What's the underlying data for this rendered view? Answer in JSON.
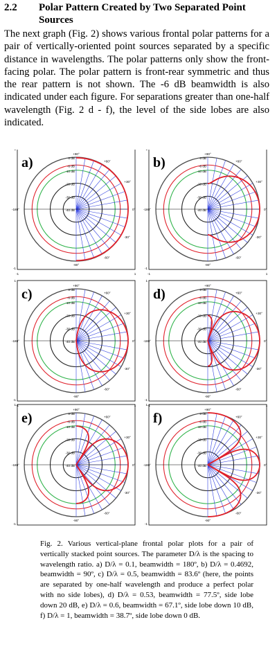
{
  "section": {
    "number": "2.2",
    "title": "Polar Pattern Created by Two Separated Point Sources"
  },
  "paragraph": "The next graph (Fig. 2) shows various frontal polar patterns for a pair of vertically-oriented point sources separated by a specific distance in wavelengths. The polar patterns only show the front-facing polar. The polar pattern is front-rear symmetric and thus the rear pattern is not shown. The -6 dB beamwidth is also indicated under each figure. For separations greater than one-half wavelength (Fig. 2 d - f), the level of the side lobes are also indicated.",
  "caption": "Fig. 2. Various vertical-plane frontal polar plots for a pair of vertically stacked point sources. The parameter D/λ is the spacing to wavelength ratio. a) D/λ = 0.1, beamwidth = 180º, b) D/λ = 0.4692, beamwidth = 90º, c) D/λ = 0.5, beamwidth = 83.6º (here, the points are separated by one-half wavelength and produce a perfect polar with no side lobes), d) D/λ = 0.53, beamwidth = 77.5º, side lobe down 20 dB, e) D/λ = 0.6, beamwidth = 67.1º, side lobe down 10 dB, f) D/λ = 1, beamwidth = 38.7º, side lobe down 0 dB.",
  "colors": {
    "pattern": "#e0202a",
    "ring0": "#4a4a4a",
    "ring6": "#e0202a",
    "ring10": "#2fb34a",
    "ring20": "#222222",
    "spoke": "#2f3fe0",
    "frame": "#000000"
  },
  "plot_labels": {
    "ring_labels": [
      "0 dB",
      "-6 dB",
      "-10 dB",
      "-20 dB",
      "-30 dB",
      "-40 dB"
    ],
    "angle_labels": [
      "+90°",
      "+60°",
      "+30°",
      "0°",
      "-30°",
      "-60°",
      "-90°",
      "-180°"
    ],
    "axis_ticks": [
      "1",
      "-1",
      "-1",
      "1"
    ]
  },
  "chart_data": [
    {
      "type": "polar",
      "panel": "a)",
      "d_over_lambda": 0.1,
      "beamwidth_deg": 180,
      "rlim_db": [
        -40,
        0
      ]
    },
    {
      "type": "polar",
      "panel": "b)",
      "d_over_lambda": 0.4692,
      "beamwidth_deg": 90,
      "rlim_db": [
        -40,
        0
      ]
    },
    {
      "type": "polar",
      "panel": "c)",
      "d_over_lambda": 0.5,
      "beamwidth_deg": 83.6,
      "rlim_db": [
        -40,
        0
      ]
    },
    {
      "type": "polar",
      "panel": "d)",
      "d_over_lambda": 0.53,
      "beamwidth_deg": 77.5,
      "side_lobe_db": -20,
      "rlim_db": [
        -40,
        0
      ]
    },
    {
      "type": "polar",
      "panel": "e)",
      "d_over_lambda": 0.6,
      "beamwidth_deg": 67.1,
      "side_lobe_db": -10,
      "rlim_db": [
        -40,
        0
      ]
    },
    {
      "type": "polar",
      "panel": "f)",
      "d_over_lambda": 1,
      "beamwidth_deg": 38.7,
      "side_lobe_db": 0,
      "rlim_db": [
        -40,
        0
      ]
    }
  ]
}
